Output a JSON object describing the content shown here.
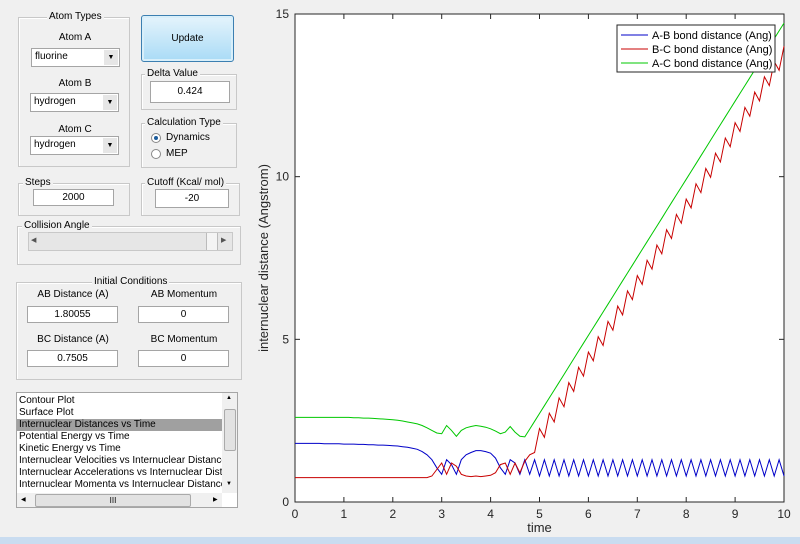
{
  "atom_types": {
    "title": "Atom Types",
    "atom_a": {
      "label": "Atom A",
      "value": "fluorine"
    },
    "atom_b": {
      "label": "Atom B",
      "value": "hydrogen"
    },
    "atom_c": {
      "label": "Atom C",
      "value": "hydrogen"
    }
  },
  "update_label": "Update",
  "delta": {
    "title": "Delta Value",
    "value": "0.424"
  },
  "calc_type": {
    "title": "Calculation Type",
    "options": [
      {
        "label": "Dynamics",
        "selected": true
      },
      {
        "label": "MEP",
        "selected": false
      }
    ]
  },
  "steps": {
    "title": "Steps",
    "value": "2000"
  },
  "cutoff": {
    "title": "Cutoff (Kcal/ mol)",
    "value": "-20"
  },
  "collision_angle": {
    "title": "Collision Angle"
  },
  "initial_conditions": {
    "title": "Initial Conditions",
    "ab_distance": {
      "label": "AB Distance (A)",
      "value": "1.80055"
    },
    "ab_momentum": {
      "label": "AB Momentum",
      "value": "0"
    },
    "bc_distance": {
      "label": "BC Distance (A)",
      "value": "0.7505"
    },
    "bc_momentum": {
      "label": "BC Momentum",
      "value": "0"
    }
  },
  "plot_list": {
    "items": [
      "Contour Plot",
      "Surface Plot",
      "Internuclear Distances vs Time",
      "Potential Energy vs Time",
      "Kinetic Energy vs Time",
      "Internuclear Velocities vs Internuclear Distance",
      "Internuclear Accelerations vs Internuclear Dista",
      "Internuclear Momenta vs Internuclear Distance"
    ],
    "selected_index": 2,
    "hscroll_label": "III"
  },
  "chart_data": {
    "type": "line",
    "xlabel": "time",
    "ylabel": "internuclear distance (Angstrom)",
    "xlim": [
      0,
      10
    ],
    "ylim": [
      0,
      15
    ],
    "xticks": [
      0,
      1,
      2,
      3,
      4,
      5,
      6,
      7,
      8,
      9,
      10
    ],
    "yticks": [
      0,
      5,
      10,
      15
    ],
    "grid": false,
    "legend_position": "top-right",
    "x": [
      0,
      0.1,
      0.2,
      0.3,
      0.4,
      0.5,
      0.6,
      0.7,
      0.8,
      0.9,
      1,
      1.1,
      1.2,
      1.3,
      1.4,
      1.5,
      1.6,
      1.7,
      1.8,
      1.9,
      2,
      2.1,
      2.2,
      2.3,
      2.4,
      2.5,
      2.6,
      2.7,
      2.8,
      2.9,
      3,
      3.1,
      3.2,
      3.3,
      3.4,
      3.5,
      3.6,
      3.7,
      3.8,
      3.9,
      4,
      4.1,
      4.2,
      4.3,
      4.4,
      4.5,
      4.6,
      4.7,
      4.8,
      4.9,
      5,
      5.1,
      5.2,
      5.3,
      5.4,
      5.5,
      5.6,
      5.7,
      5.8,
      5.9,
      6,
      6.1,
      6.2,
      6.3,
      6.4,
      6.5,
      6.6,
      6.7,
      6.8,
      6.9,
      7,
      7.1,
      7.2,
      7.3,
      7.4,
      7.5,
      7.6,
      7.7,
      7.8,
      7.9,
      8,
      8.1,
      8.2,
      8.3,
      8.4,
      8.5,
      8.6,
      8.7,
      8.8,
      8.9,
      9,
      9.1,
      9.2,
      9.3,
      9.4,
      9.5,
      9.6,
      9.7,
      9.8,
      9.9,
      10
    ],
    "series": [
      {
        "name": "A-B bond distance (Ang)",
        "color": "#0000c8",
        "values": [
          1.8,
          1.8,
          1.8,
          1.8,
          1.8,
          1.8,
          1.79,
          1.79,
          1.79,
          1.79,
          1.78,
          1.78,
          1.78,
          1.77,
          1.77,
          1.76,
          1.76,
          1.75,
          1.75,
          1.74,
          1.73,
          1.72,
          1.7,
          1.68,
          1.65,
          1.62,
          1.55,
          1.45,
          1.3,
          1.05,
          0.85,
          1.3,
          1.15,
          0.85,
          1.3,
          1.45,
          1.52,
          1.58,
          1.58,
          1.55,
          1.5,
          1.35,
          1.05,
          0.85,
          1.3,
          1.2,
          0.85,
          1.3,
          0.85,
          1.3,
          0.8,
          1.3,
          0.8,
          1.3,
          0.8,
          1.3,
          0.8,
          1.3,
          0.8,
          1.3,
          0.8,
          1.3,
          0.8,
          1.3,
          0.8,
          1.3,
          0.8,
          1.3,
          0.8,
          1.3,
          0.8,
          1.3,
          0.8,
          1.3,
          0.8,
          1.3,
          0.8,
          1.3,
          0.8,
          1.3,
          0.8,
          1.3,
          0.8,
          1.3,
          0.8,
          1.3,
          0.8,
          1.3,
          0.8,
          1.3,
          0.8,
          1.3,
          0.8,
          1.3,
          0.8,
          1.3,
          0.8,
          1.3,
          0.8,
          1.3,
          0.8
        ]
      },
      {
        "name": "B-C bond distance (Ang)",
        "color": "#c80000",
        "values": [
          0.75,
          0.75,
          0.75,
          0.75,
          0.75,
          0.75,
          0.75,
          0.75,
          0.75,
          0.75,
          0.75,
          0.75,
          0.75,
          0.75,
          0.75,
          0.75,
          0.75,
          0.75,
          0.75,
          0.75,
          0.75,
          0.75,
          0.75,
          0.75,
          0.75,
          0.75,
          0.75,
          0.75,
          0.8,
          1.0,
          1.2,
          0.85,
          1.2,
          1.1,
          0.85,
          0.8,
          0.78,
          0.8,
          0.78,
          0.8,
          0.82,
          0.9,
          1.15,
          1.2,
          0.85,
          1.2,
          0.9,
          1.25,
          1.45,
          1.52,
          2.26,
          1.99,
          2.73,
          2.46,
          3.2,
          2.93,
          3.67,
          3.4,
          4.14,
          3.87,
          4.61,
          4.34,
          5.08,
          4.81,
          5.55,
          5.28,
          6.02,
          5.75,
          6.49,
          6.22,
          6.96,
          6.69,
          7.43,
          7.16,
          7.9,
          7.63,
          8.37,
          8.1,
          8.84,
          8.57,
          9.31,
          9.04,
          9.78,
          9.51,
          10.25,
          9.98,
          10.72,
          10.45,
          11.19,
          10.92,
          11.66,
          11.39,
          12.13,
          11.86,
          12.6,
          12.33,
          13.07,
          12.8,
          13.54,
          13.27,
          14.01
        ]
      },
      {
        "name": "A-C bond distance (Ang)",
        "color": "#00c800",
        "values": [
          2.6,
          2.6,
          2.6,
          2.6,
          2.6,
          2.6,
          2.6,
          2.6,
          2.6,
          2.6,
          2.6,
          2.6,
          2.59,
          2.59,
          2.58,
          2.58,
          2.57,
          2.56,
          2.55,
          2.54,
          2.53,
          2.51,
          2.49,
          2.46,
          2.43,
          2.4,
          2.35,
          2.28,
          2.2,
          2.12,
          2.1,
          2.35,
          2.2,
          2.02,
          2.2,
          2.28,
          2.32,
          2.35,
          2.33,
          2.3,
          2.25,
          2.18,
          2.1,
          2.15,
          2.32,
          2.15,
          2.02,
          2.0,
          2.24,
          2.48,
          2.72,
          2.96,
          3.2,
          3.44,
          3.68,
          3.92,
          4.16,
          4.4,
          4.64,
          4.88,
          5.12,
          5.36,
          5.6,
          5.84,
          6.08,
          6.32,
          6.56,
          6.8,
          7.04,
          7.28,
          7.52,
          7.76,
          8.0,
          8.24,
          8.48,
          8.72,
          8.96,
          9.2,
          9.44,
          9.68,
          9.92,
          10.16,
          10.4,
          10.64,
          10.88,
          11.12,
          11.36,
          11.6,
          11.84,
          12.08,
          12.32,
          12.56,
          12.8,
          13.04,
          13.28,
          13.52,
          13.76,
          14.0,
          14.24,
          14.48,
          14.72
        ]
      }
    ]
  }
}
